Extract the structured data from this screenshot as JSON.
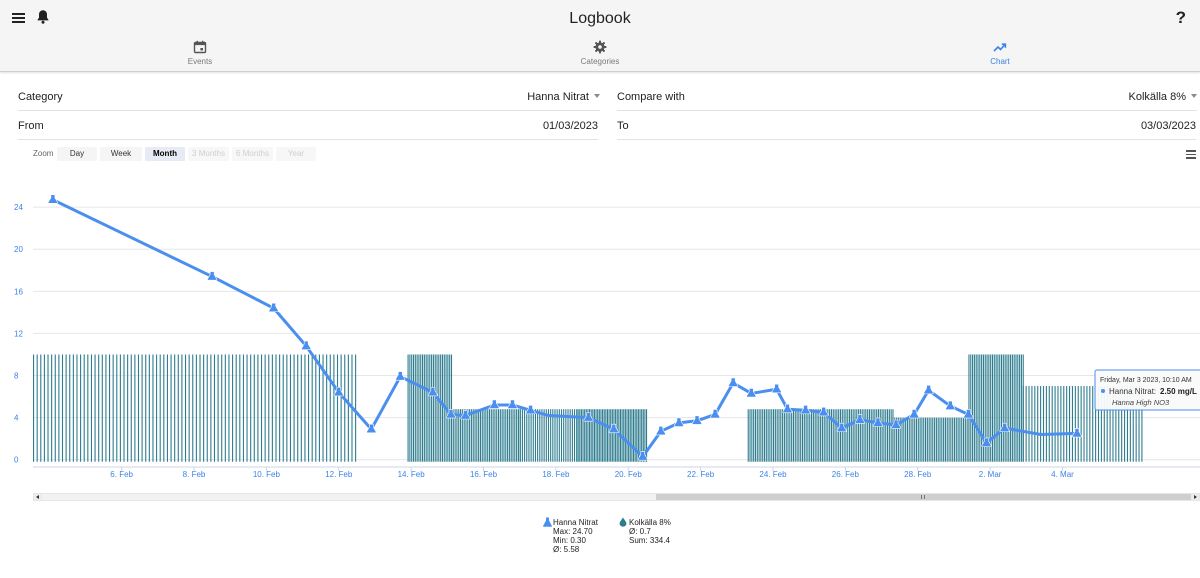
{
  "header": {
    "title": "Logbook",
    "help_label": "?"
  },
  "tabs": [
    {
      "label": "Events",
      "icon": "calendar-icon",
      "active": false
    },
    {
      "label": "Categories",
      "icon": "gear-icon",
      "active": false
    },
    {
      "label": "Chart",
      "icon": "trending-up-icon",
      "active": true
    }
  ],
  "filters": {
    "category_label": "Category",
    "category_value": "Hanna Nitrat",
    "compare_label": "Compare with",
    "compare_value": "Kolkälla 8%",
    "from_label": "From",
    "from_value": "01/03/2023",
    "to_label": "To",
    "to_value": "03/03/2023"
  },
  "zoom": {
    "label": "Zoom",
    "buttons": [
      "Day",
      "Week",
      "Month",
      "3 Months",
      "6 Months",
      "Year"
    ],
    "selected": "Month",
    "disabled": [
      "3 Months",
      "6 Months",
      "Year"
    ]
  },
  "colors": {
    "accent": "#3b82e8",
    "line": "#4a8ef0",
    "bars": "#2e7d8f",
    "grid": "#e6e6e6",
    "axis_text": "#3b82e8"
  },
  "chart_data": {
    "type": "line",
    "x_unit": "date",
    "y_ticks": [
      0,
      4,
      8,
      12,
      16,
      20,
      24
    ],
    "ylim": [
      -0.5,
      28
    ],
    "x_ticks": [
      "6. Feb",
      "8. Feb",
      "10. Feb",
      "12. Feb",
      "14. Feb",
      "16. Feb",
      "18. Feb",
      "20. Feb",
      "22. Feb",
      "24. Feb",
      "26. Feb",
      "28. Feb",
      "2. Mar",
      "4. Mar"
    ],
    "xlim_days": [
      3.55,
      35.8
    ],
    "grid": true,
    "series": [
      {
        "name": "Hanna Nitrat",
        "kind": "line",
        "x_days": [
          4.1,
          8.5,
          10.2,
          11.1,
          12.0,
          12.9,
          13.7,
          14.6,
          15.1,
          15.5,
          16.3,
          16.8,
          17.3,
          17.8,
          18.9,
          19.6,
          20.4,
          20.9,
          21.4,
          21.9,
          22.4,
          22.9,
          23.4,
          24.1,
          24.4,
          24.9,
          25.4,
          25.9,
          26.4,
          26.9,
          27.4,
          27.9,
          28.3,
          28.9,
          29.4,
          29.9,
          30.4,
          31.4,
          32.4
        ],
        "values": [
          24.7,
          17.4,
          14.4,
          10.8,
          6.4,
          2.9,
          7.9,
          6.4,
          4.3,
          4.2,
          5.2,
          5.2,
          4.7,
          4.2,
          4.0,
          2.9,
          0.3,
          2.7,
          3.5,
          3.7,
          4.3,
          7.3,
          6.3,
          6.7,
          4.8,
          4.7,
          4.5,
          3.0,
          3.8,
          3.5,
          3.3,
          4.3,
          6.6,
          5.1,
          4.3,
          1.6,
          3.0,
          2.4,
          2.5
        ],
        "markers": [
          4.1,
          8.5,
          10.2,
          11.1,
          12.0,
          12.9,
          13.7,
          14.6,
          15.1,
          15.5,
          16.3,
          16.8,
          17.3,
          18.9,
          19.6,
          20.4,
          20.9,
          21.4,
          21.9,
          22.4,
          22.9,
          23.4,
          24.1,
          24.4,
          24.9,
          25.4,
          25.9,
          26.4,
          26.9,
          27.4,
          27.9,
          28.3,
          28.9,
          29.4,
          29.9,
          30.4,
          32.4
        ],
        "max": "24.70",
        "min": "0.30",
        "avg": "5.58"
      },
      {
        "name": "Kolkälla 8%",
        "kind": "bar",
        "segments": [
          {
            "from": 3.55,
            "to": 12.45,
            "value": 10,
            "step": 0.1
          },
          {
            "from": 13.9,
            "to": 15.1,
            "value": 10,
            "step": 0.05
          },
          {
            "from": 15.1,
            "to": 17.0,
            "value": 4.8,
            "step": 0.05
          },
          {
            "from": 17.0,
            "to": 18.6,
            "value": 4.8,
            "step": 0.06
          },
          {
            "from": 18.6,
            "to": 20.5,
            "value": 4.8,
            "step": 0.045
          },
          {
            "from": 23.3,
            "to": 27.3,
            "value": 4.8,
            "step": 0.05
          },
          {
            "from": 27.3,
            "to": 29.4,
            "value": 4.0,
            "step": 0.05
          },
          {
            "from": 29.4,
            "to": 30.9,
            "value": 10,
            "step": 0.05
          },
          {
            "from": 30.9,
            "to": 34.2,
            "value": 7.0,
            "step": 0.08
          }
        ],
        "avg": "0.7",
        "sum": "334.4"
      }
    ],
    "tooltip": {
      "date": "Friday, Mar 3 2023, 10:10 AM",
      "series": "Hanna Nitrat",
      "value": "2.50 mg/L",
      "note": "Hanna High NO3"
    }
  },
  "legend": {
    "hanna": {
      "name": "Hanna Nitrat",
      "max": "Max: 24.70",
      "min": "Min: 0.30",
      "avg": "Ø: 5.58"
    },
    "kolkalla": {
      "name": "Kolkälla 8%",
      "avg": "Ø: 0.7",
      "sum": "Sum: 334.4"
    }
  }
}
